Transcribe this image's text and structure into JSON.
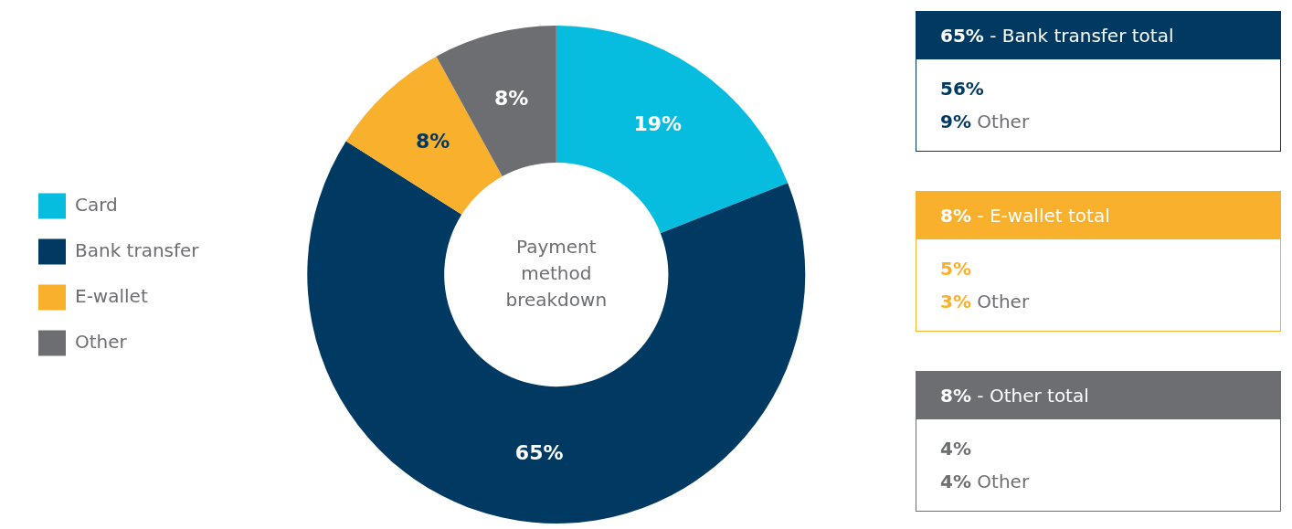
{
  "chart_data": {
    "type": "donut",
    "categories": [
      "Card",
      "Bank transfer",
      "E-wallet",
      "Other"
    ],
    "values": [
      19,
      65,
      8,
      8
    ],
    "colors": [
      "#06bde0",
      "#003a63",
      "#f9b02d",
      "#6d6e71"
    ],
    "value_labels": [
      "19%",
      "65%",
      "8%",
      "8%"
    ],
    "legend": "left",
    "annotations": [
      "Payment method breakdown",
      "65% - Bank transfer total",
      "56%",
      "9% Other",
      "8% - E-wallet total",
      "5%",
      "3% Other",
      "8% - Other total",
      "4%",
      "4% Other"
    ]
  }
}
